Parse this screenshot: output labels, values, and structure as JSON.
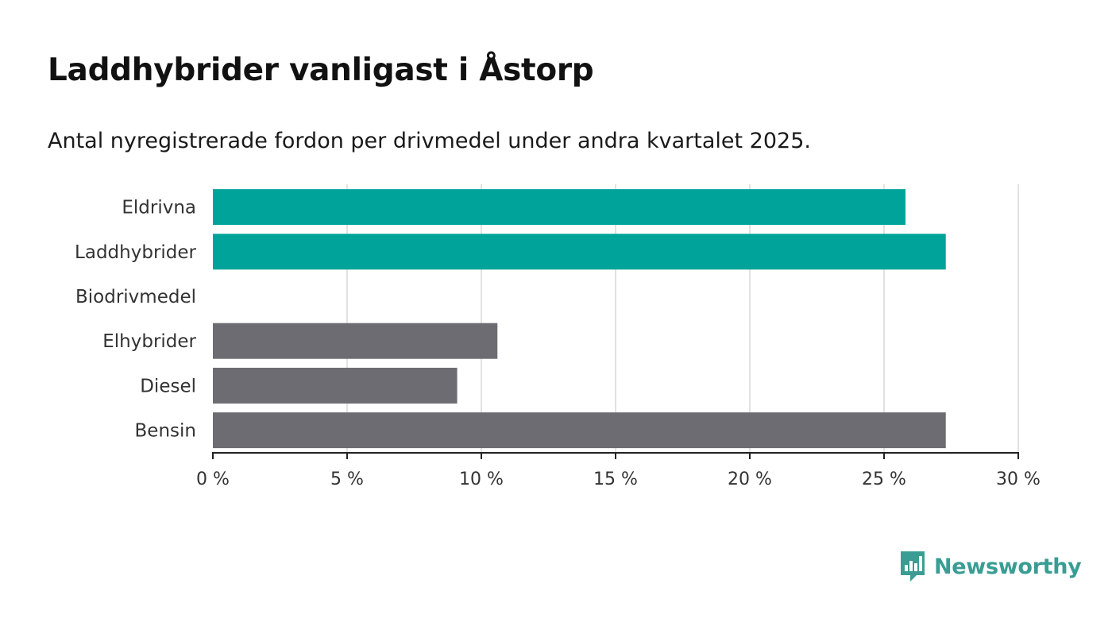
{
  "header": {
    "title": "Laddhybrider vanligast i Åstorp",
    "subtitle": "Antal nyregistrerade fordon per drivmedel under andra kvartalet 2025."
  },
  "chart_data": {
    "type": "bar",
    "orientation": "horizontal",
    "categories": [
      "Eldrivna",
      "Laddhybrider",
      "Biodrivmedel",
      "Elhybrider",
      "Diesel",
      "Bensin"
    ],
    "values": [
      25.8,
      27.3,
      0,
      10.6,
      9.1,
      27.3
    ],
    "highlighted": [
      true,
      true,
      false,
      false,
      false,
      false
    ],
    "xlim": [
      0,
      30
    ],
    "xticks": [
      0,
      5,
      10,
      15,
      20,
      25,
      30
    ],
    "xtick_labels": [
      "0 %",
      "5 %",
      "10 %",
      "15 %",
      "20 %",
      "25 %",
      "30 %"
    ],
    "grid": "vertical",
    "colors": {
      "highlight": "#00a39a",
      "default": "#6d6c73",
      "grid": "#d9d9d9",
      "axis": "#222222"
    }
  },
  "brand": {
    "name": "Newsworthy",
    "icon": "newsworthy-logo-icon",
    "color": "#3a9d94"
  }
}
